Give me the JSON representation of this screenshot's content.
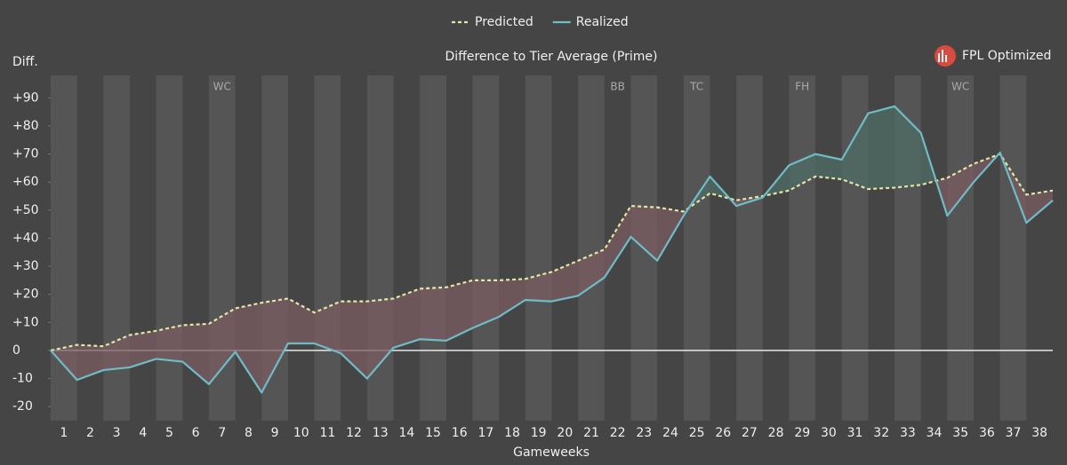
{
  "chart_data": {
    "type": "line",
    "title": "Difference to Tier Average (Prime)",
    "ylabel": "Diff.",
    "xlabel": "Gameweeks",
    "brand": "FPL Optimized",
    "x": [
      0,
      1,
      2,
      3,
      4,
      5,
      6,
      7,
      8,
      9,
      10,
      11,
      12,
      13,
      14,
      15,
      16,
      17,
      18,
      19,
      20,
      21,
      22,
      23,
      24,
      25,
      26,
      27,
      28,
      29,
      30,
      31,
      32,
      33,
      34,
      35,
      36,
      37,
      38
    ],
    "series": [
      {
        "name": "Predicted",
        "color": "#e2e6a6",
        "dashed": true,
        "values": [
          0,
          2,
          1.5,
          5.5,
          7,
          9,
          9.5,
          15,
          17,
          18.5,
          13.5,
          17.5,
          17.5,
          18.5,
          22,
          22.5,
          25,
          25,
          25.5,
          28,
          32,
          36,
          51.5,
          51,
          49.5,
          56,
          53.5,
          55,
          57,
          62,
          61,
          57.5,
          58,
          59,
          61.5,
          66.5,
          70,
          55.5,
          57
        ]
      },
      {
        "name": "Realized",
        "color": "#6fbcc6",
        "dashed": false,
        "values": [
          0,
          -10.5,
          -7,
          -6,
          -3,
          -4,
          -12,
          -0.5,
          -15,
          2.5,
          2.5,
          -1,
          -10,
          1,
          4,
          3.5,
          8,
          12,
          18,
          17.5,
          19.5,
          26,
          40.5,
          32,
          48,
          62,
          51.5,
          54.5,
          66,
          70,
          68,
          84.5,
          87,
          77.5,
          48,
          60,
          70.5,
          45.5,
          53.5
        ]
      }
    ],
    "fill_below_color": "#7a5c62",
    "fill_above_color": "#4f6e66",
    "annotations": [
      {
        "x": 6.5,
        "label": "WC"
      },
      {
        "x": 21.5,
        "label": "BB"
      },
      {
        "x": 24.5,
        "label": "TC"
      },
      {
        "x": 28.5,
        "label": "FH"
      },
      {
        "x": 34.5,
        "label": "WC"
      }
    ],
    "xlim": [
      0,
      38
    ],
    "xticks": [
      {
        "value": 0.5,
        "label": "1"
      },
      {
        "value": 1.5,
        "label": "2"
      },
      {
        "value": 2.5,
        "label": "3"
      },
      {
        "value": 3.5,
        "label": "4"
      },
      {
        "value": 4.5,
        "label": "5"
      },
      {
        "value": 5.5,
        "label": "6"
      },
      {
        "value": 6.5,
        "label": "7"
      },
      {
        "value": 7.5,
        "label": "8"
      },
      {
        "value": 8.5,
        "label": "9"
      },
      {
        "value": 9.5,
        "label": "10"
      },
      {
        "value": 10.5,
        "label": "11"
      },
      {
        "value": 11.5,
        "label": "12"
      },
      {
        "value": 12.5,
        "label": "13"
      },
      {
        "value": 13.5,
        "label": "14"
      },
      {
        "value": 14.5,
        "label": "15"
      },
      {
        "value": 15.5,
        "label": "16"
      },
      {
        "value": 16.5,
        "label": "17"
      },
      {
        "value": 17.5,
        "label": "18"
      },
      {
        "value": 18.5,
        "label": "19"
      },
      {
        "value": 19.5,
        "label": "20"
      },
      {
        "value": 20.5,
        "label": "21"
      },
      {
        "value": 21.5,
        "label": "22"
      },
      {
        "value": 22.5,
        "label": "23"
      },
      {
        "value": 23.5,
        "label": "24"
      },
      {
        "value": 24.5,
        "label": "25"
      },
      {
        "value": 25.5,
        "label": "26"
      },
      {
        "value": 26.5,
        "label": "27"
      },
      {
        "value": 27.5,
        "label": "28"
      },
      {
        "value": 28.5,
        "label": "29"
      },
      {
        "value": 29.5,
        "label": "30"
      },
      {
        "value": 30.5,
        "label": "31"
      },
      {
        "value": 31.5,
        "label": "32"
      },
      {
        "value": 32.5,
        "label": "33"
      },
      {
        "value": 33.5,
        "label": "34"
      },
      {
        "value": 34.5,
        "label": "35"
      },
      {
        "value": 35.5,
        "label": "36"
      },
      {
        "value": 36.5,
        "label": "37"
      },
      {
        "value": 37.5,
        "label": "38"
      }
    ],
    "ylim": [
      -25,
      98
    ],
    "yticks": [
      -20,
      -10,
      0,
      {
        "value": 10,
        "label": "+10"
      },
      {
        "value": 20,
        "label": "+20"
      },
      {
        "value": 30,
        "label": "+30"
      },
      {
        "value": 40,
        "label": "+40"
      },
      {
        "value": 50,
        "label": "+50"
      },
      {
        "value": 60,
        "label": "+60"
      },
      {
        "value": 70,
        "label": "+70"
      },
      {
        "value": 80,
        "label": "+80"
      },
      {
        "value": 90,
        "label": "+90"
      }
    ],
    "legend": "top"
  }
}
